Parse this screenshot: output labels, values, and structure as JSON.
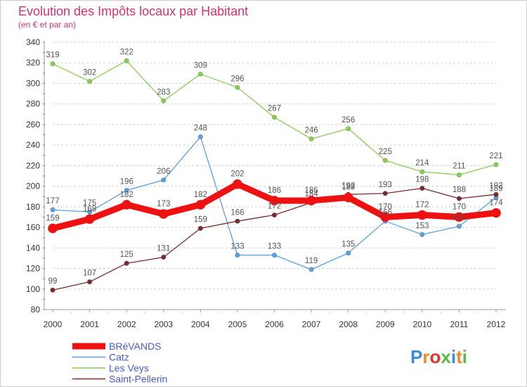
{
  "chart_data": {
    "type": "line",
    "title": "Evolution des Impôts locaux par Habitant",
    "subtitle": "(en € et par an)",
    "x": [
      "2000",
      "2001",
      "2002",
      "2003",
      "2004",
      "2005",
      "2006",
      "2007",
      "2008",
      "2009",
      "2010",
      "2011",
      "2012"
    ],
    "ylim": [
      80,
      340
    ],
    "yticks": [
      80,
      100,
      120,
      140,
      160,
      180,
      200,
      220,
      240,
      260,
      280,
      300,
      320,
      340
    ],
    "grid": "horizontal dashed",
    "legend_position": "bottom-left",
    "series": [
      {
        "name": "Les Veys",
        "color": "#88cc55",
        "width": 1.3,
        "values": [
          319,
          302,
          322,
          283,
          309,
          296,
          267,
          246,
          256,
          225,
          214,
          211,
          221
        ]
      },
      {
        "name": "Catz",
        "color": "#5aa0dc",
        "width": 1.3,
        "values": [
          177,
          175,
          196,
          206,
          248,
          133,
          133,
          119,
          135,
          166,
          153,
          161,
          189
        ]
      },
      {
        "name": "Saint-Pellerin",
        "color": "#7a2b30",
        "width": 1.3,
        "values": [
          99,
          107,
          125,
          131,
          159,
          166,
          172,
          184,
          192,
          193,
          198,
          188,
          192
        ]
      },
      {
        "name": "BRéVANDS",
        "color": "#ee1111",
        "width": 9,
        "values": [
          159,
          168,
          182,
          173,
          182,
          202,
          186,
          186,
          189,
          170,
          172,
          170,
          174
        ]
      }
    ],
    "legend_order": [
      "BRéVANDS",
      "Catz",
      "Les Veys",
      "Saint-Pellerin"
    ]
  },
  "logo": {
    "text": "Proxiti"
  }
}
